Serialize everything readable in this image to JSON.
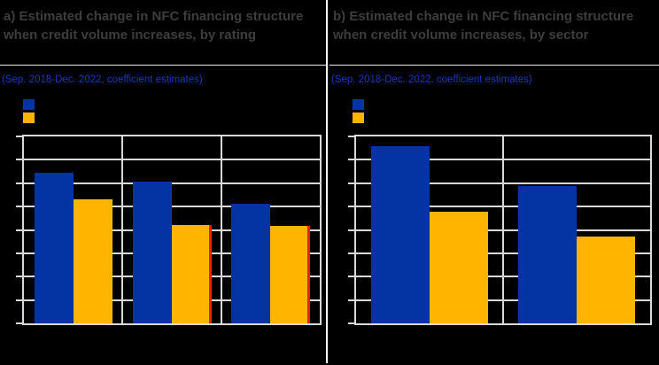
{
  "figure": {
    "background": "#000000",
    "panels": [
      {
        "label": "a",
        "title": "a) Estimated change in NFC financing structure when credit volume increases, by rating",
        "subtitle": "(Sep. 2018-Dec. 2022, coefficient estimates)",
        "legend": [
          {
            "swatch": "blue-square",
            "color": "#0433a4",
            "label": ""
          },
          {
            "swatch": "yellow-square",
            "color": "#ffb400",
            "label": ""
          }
        ]
      },
      {
        "label": "b",
        "title": "b) Estimated change in NFC financing structure when credit volume increases, by sector",
        "subtitle": "(Sep. 2018-Dec. 2022, coefficient estimates)",
        "legend": [
          {
            "swatch": "blue-square",
            "color": "#0433a4",
            "label": ""
          },
          {
            "swatch": "yellow-square",
            "color": "#ffb400",
            "label": ""
          }
        ]
      }
    ]
  },
  "colors": {
    "title_text": "#3d3d3d",
    "subtitle_text": "#1539bd",
    "bar_blue": "#0433a4",
    "bar_yellow": "#ffb400",
    "red_edge_marker": "#f01e00",
    "gridline": "#d9d9d9",
    "panel_divider": "#ffffff",
    "background": "#000000"
  },
  "chart_data": [
    {
      "type": "bar",
      "title": "a) Estimated change in NFC financing structure when credit volume increases, by rating",
      "subtitle": "(Sep. 2018-Dec. 2022, coefficient estimates)",
      "categories": [
        "",
        "",
        ""
      ],
      "series": [
        {
          "name": "blue",
          "color": "#0433a4",
          "values": [
            6.44,
            6.06,
            5.11
          ]
        },
        {
          "name": "yellow",
          "color": "#ffb400",
          "values": [
            5.31,
            4.2,
            4.17
          ],
          "red_right_edge": [
            false,
            true,
            true
          ]
        }
      ],
      "ylim": [
        0,
        8
      ],
      "y_gridline_intervals": 8,
      "value_unit": "gridline-units (axis tick labels not legible: rendered black on black)",
      "axis_tick_labels_visible": false,
      "legend_labels_visible": false,
      "legend_position": "top-left",
      "grid": true
    },
    {
      "type": "bar",
      "title": "b) Estimated change in NFC financing structure when credit volume increases, by sector",
      "subtitle": "(Sep. 2018-Dec. 2022, coefficient estimates)",
      "categories": [
        "",
        ""
      ],
      "series": [
        {
          "name": "blue",
          "color": "#0433a4",
          "values": [
            7.59,
            5.88
          ]
        },
        {
          "name": "yellow",
          "color": "#ffb400",
          "values": [
            4.76,
            3.72
          ],
          "red_right_edge": [
            false,
            false
          ]
        }
      ],
      "ylim": [
        0,
        8
      ],
      "y_gridline_intervals": 8,
      "value_unit": "gridline-units (axis tick labels not legible: rendered black on black)",
      "axis_tick_labels_visible": false,
      "legend_labels_visible": false,
      "legend_position": "top-left",
      "grid": true
    }
  ]
}
